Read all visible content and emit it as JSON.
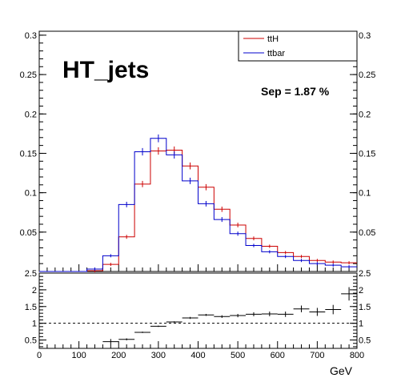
{
  "chart_data": [
    {
      "type": "histogram",
      "panel": "main",
      "title": "HT_jets",
      "annotation": "Sep = 1.87 %",
      "xlim": [
        0,
        800
      ],
      "ylim": [
        0,
        0.305
      ],
      "yticks": [
        0.05,
        0.1,
        0.15,
        0.2,
        0.25,
        0.3
      ],
      "ytick_labels": [
        "0.05",
        "0.1",
        "0.15",
        "0.2",
        "0.25",
        "0.3"
      ],
      "bin_edges": [
        0,
        40,
        80,
        120,
        160,
        200,
        240,
        280,
        320,
        360,
        400,
        440,
        480,
        520,
        560,
        600,
        640,
        680,
        720,
        760,
        800
      ],
      "legend": {
        "placement": "top-right"
      },
      "colors": {
        "ttH": "#cc0000",
        "ttbar": "#0000cc"
      },
      "series": [
        {
          "name": "ttH",
          "color": "#cc0000",
          "values": [
            0,
            0,
            0,
            0.001,
            0.009,
            0.044,
            0.111,
            0.153,
            0.154,
            0.134,
            0.107,
            0.079,
            0.059,
            0.042,
            0.032,
            0.024,
            0.019,
            0.014,
            0.012,
            0.011
          ]
        },
        {
          "name": "ttbar",
          "color": "#0000cc",
          "values": [
            0,
            0,
            0,
            0.003,
            0.02,
            0.085,
            0.152,
            0.169,
            0.148,
            0.115,
            0.086,
            0.066,
            0.048,
            0.033,
            0.025,
            0.019,
            0.014,
            0.01,
            0.008,
            0.006
          ]
        }
      ]
    },
    {
      "type": "scatter",
      "panel": "ratio",
      "xlim": [
        0,
        800
      ],
      "ylim": [
        0.25,
        2.5
      ],
      "xticks": [
        0,
        100,
        200,
        300,
        400,
        500,
        600,
        700,
        800
      ],
      "xtick_labels": [
        "0",
        "100",
        "200",
        "300",
        "400",
        "500",
        "600",
        "700",
        "800"
      ],
      "yticks": [
        0.5,
        1,
        1.5,
        2,
        2.5
      ],
      "ytick_labels": [
        "0.5",
        "1",
        "1.5",
        "2",
        "2.5"
      ],
      "xlabel": "GeV",
      "reference_line": 1,
      "points": [
        {
          "x": 180,
          "y": 0.45,
          "err": 0.08
        },
        {
          "x": 220,
          "y": 0.52,
          "err": 0.03
        },
        {
          "x": 260,
          "y": 0.73,
          "err": 0.02
        },
        {
          "x": 300,
          "y": 0.91,
          "err": 0.02
        },
        {
          "x": 340,
          "y": 1.04,
          "err": 0.02
        },
        {
          "x": 380,
          "y": 1.16,
          "err": 0.03
        },
        {
          "x": 420,
          "y": 1.25,
          "err": 0.03
        },
        {
          "x": 460,
          "y": 1.2,
          "err": 0.04
        },
        {
          "x": 500,
          "y": 1.23,
          "err": 0.05
        },
        {
          "x": 540,
          "y": 1.27,
          "err": 0.06
        },
        {
          "x": 580,
          "y": 1.28,
          "err": 0.07
        },
        {
          "x": 620,
          "y": 1.27,
          "err": 0.08
        },
        {
          "x": 660,
          "y": 1.43,
          "err": 0.1
        },
        {
          "x": 700,
          "y": 1.34,
          "err": 0.12
        },
        {
          "x": 740,
          "y": 1.41,
          "err": 0.14
        },
        {
          "x": 780,
          "y": 1.88,
          "err": 0.2
        }
      ]
    }
  ]
}
